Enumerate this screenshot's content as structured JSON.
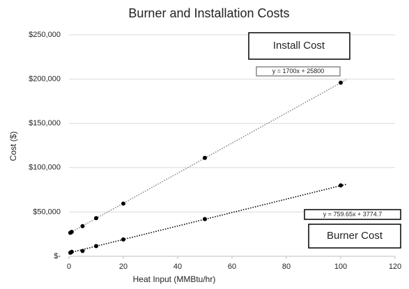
{
  "chart_data": {
    "type": "scatter",
    "title": "Burner and Installation Costs",
    "x_label": "Heat Input (MMBtu/hr)",
    "y_label": "Cost ($)",
    "xlim": [
      0,
      120
    ],
    "xticks": [
      0,
      20,
      40,
      60,
      80,
      100,
      120
    ],
    "ylim": [
      0,
      250000
    ],
    "yticks": [
      {
        "value": 0,
        "label": "$-"
      },
      {
        "value": 50000,
        "label": "$50,000"
      },
      {
        "value": 100000,
        "label": "$100,000"
      },
      {
        "value": 150000,
        "label": "$150,000"
      },
      {
        "value": 200000,
        "label": "$200,000"
      },
      {
        "value": 250000,
        "label": "$250,000"
      }
    ],
    "grid": true,
    "series": [
      {
        "name": "Install Cost",
        "color": "#000000",
        "trend_color": "#888888",
        "x": [
          0.5,
          1,
          5,
          10,
          20,
          50,
          100
        ],
        "values": [
          26500,
          27500,
          34000,
          43000,
          59500,
          111000,
          196000
        ],
        "trend_slope": 1700,
        "trend_intercept": 25800,
        "trend_label": "y = 1700x + 25800"
      },
      {
        "name": "Burner Cost",
        "color": "#000000",
        "trend_color": "#000000",
        "x": [
          0.5,
          1,
          5,
          10,
          20,
          50,
          100
        ],
        "values": [
          4000,
          5000,
          6000,
          11500,
          19000,
          42000,
          80000
        ],
        "trend_slope": 759.65,
        "trend_intercept": 3774.7,
        "trend_label": "y = 759.65x + 3774.7"
      }
    ]
  }
}
